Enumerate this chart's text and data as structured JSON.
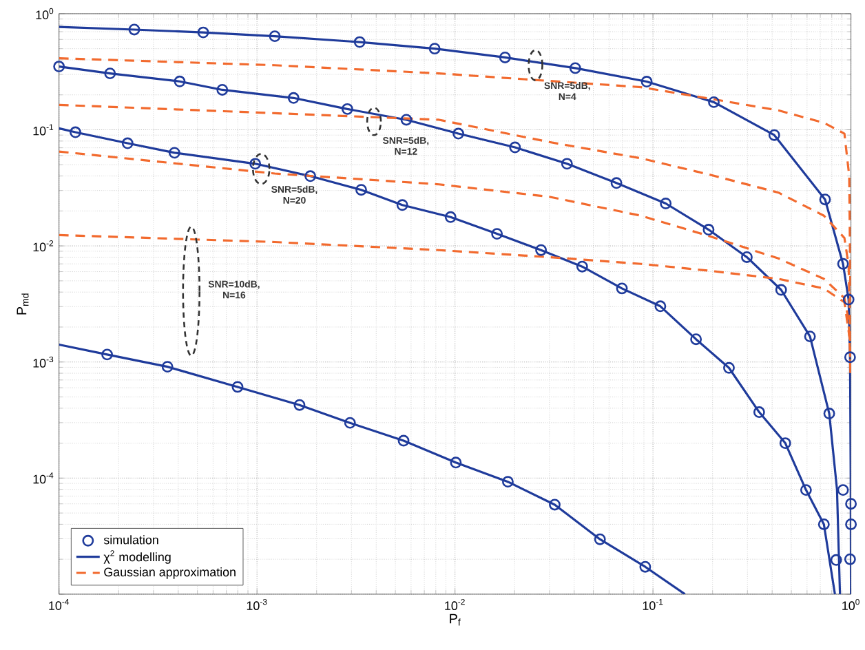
{
  "chart_data": {
    "type": "line",
    "xlabel": "P$_{f}$",
    "ylabel": "P$_{md}$",
    "log": "xy",
    "grid": true,
    "legend": "bottom left",
    "xlim": [
      0.0001,
      1
    ],
    "ylim": [
      1e-05,
      1
    ],
    "xticks": [
      {
        "value": 0.0001,
        "label": "10$^{-4}$"
      },
      {
        "value": 0.001,
        "label": "10$^{-3}$"
      },
      {
        "value": 0.01,
        "label": "10$^{-2}$"
      },
      {
        "value": 0.1,
        "label": "10$^{-1}$"
      },
      {
        "value": 1,
        "label": "10$^{0}$"
      }
    ],
    "yticks": [
      {
        "value": 1e-05,
        "label": null
      },
      {
        "value": 0.0001,
        "label": "10$^{-4}$"
      },
      {
        "value": 0.001,
        "label": "10$^{-3}$"
      },
      {
        "value": 0.01,
        "label": "10$^{-2}$"
      },
      {
        "value": 0.1,
        "label": "10$^{-1}$"
      },
      {
        "value": 1,
        "label": "10$^{0}$"
      }
    ],
    "annotations": [
      {
        "text": "SNR=5dB, N=4",
        "x": 0.0255,
        "y": 0.36
      },
      {
        "text": "SNR=5dB, N=12",
        "x": 0.0039,
        "y": 0.118
      },
      {
        "text": "SNR=5dB, N=20",
        "x": 0.00105,
        "y": 0.046
      },
      "SNR=10dB, N=16"
    ],
    "series": [
      {
        "name": "simulation",
        "type": "scatter",
        "marker": "circle",
        "color": "#1f3b9b",
        "x": [
          0.00024,
          0.000535,
          0.00123,
          0.0033,
          0.0079,
          0.0179,
          0.0405,
          0.093,
          0.203,
          0.41,
          0.74,
          0.912,
          0.973,
          0.99,
          1.0,
          1.0,
          0.99,
          0.0001,
          0.000181,
          0.000407,
          0.000668,
          0.00153,
          0.00286,
          0.00568,
          0.0104,
          0.0201,
          0.0368,
          0.0654,
          0.116,
          0.191,
          0.298,
          0.444,
          0.621,
          0.777,
          0.912,
          0.000121,
          0.000222,
          0.000383,
          0.00098,
          0.00186,
          0.00336,
          0.00542,
          0.0095,
          0.0163,
          0.0272,
          0.0439,
          0.0697,
          0.109,
          0.165,
          0.242,
          0.344,
          0.466,
          0.593,
          0.73,
          0.842,
          0.000175,
          0.000353,
          0.000798,
          0.00164,
          0.00295,
          0.0055,
          0.0101,
          0.0185,
          0.0319,
          0.054,
          0.0914
        ],
        "values": [
          0.73,
          0.69,
          0.64,
          0.57,
          0.5,
          0.42,
          0.34,
          0.26,
          0.173,
          0.09,
          0.0251,
          0.007,
          0.00345,
          0.0011,
          6e-05,
          4e-05,
          2e-05,
          0.351,
          0.306,
          0.261,
          0.221,
          0.188,
          0.151,
          0.122,
          0.0927,
          0.0706,
          0.051,
          0.0348,
          0.0232,
          0.0138,
          0.008,
          0.00418,
          0.00166,
          0.00036,
          7.9e-05,
          0.0953,
          0.0766,
          0.0634,
          0.051,
          0.0399,
          0.0304,
          0.0225,
          0.0177,
          0.0127,
          0.0092,
          0.00663,
          0.0043,
          0.00302,
          0.00157,
          0.00089,
          0.00037,
          0.0002,
          7.9e-05,
          4e-05,
          1.97e-05,
          0.00116,
          0.00091,
          0.00061,
          0.000426,
          0.000299,
          0.00021,
          0.000136,
          9.3e-05,
          5.9e-05,
          2.97e-05,
          1.72e-05
        ]
      },
      {
        "name": "χ$^{2}$ modelling",
        "line_style": "solid",
        "color": "#1f3b9b",
        "x": [
          0.0001,
          0.00024,
          0.000535,
          0.00123,
          0.0033,
          0.0079,
          0.0179,
          0.0405,
          0.093,
          0.203,
          0.41,
          0.74,
          0.912,
          0.973,
          0.99,
          0.997,
          1.0
        ],
        "values": [
          0.77,
          0.73,
          0.69,
          0.64,
          0.57,
          0.5,
          0.42,
          0.34,
          0.26,
          0.173,
          0.09,
          0.0251,
          0.007,
          0.00345,
          0.001,
          0.0001,
          1e-05
        ]
      },
      {
        "line_style": "solid",
        "color": "#1f3b9b",
        "x": [
          0.0001,
          0.000181,
          0.000407,
          0.000668,
          0.00153,
          0.00286,
          0.00568,
          0.0104,
          0.0201,
          0.0368,
          0.0654,
          0.116,
          0.191,
          0.298,
          0.444,
          0.621,
          0.777,
          0.85,
          0.88
        ],
        "values": [
          0.351,
          0.306,
          0.261,
          0.221,
          0.188,
          0.151,
          0.122,
          0.0927,
          0.0706,
          0.051,
          0.0348,
          0.0232,
          0.0138,
          0.008,
          0.00418,
          0.00166,
          0.00036,
          8e-05,
          1e-05
        ]
      },
      {
        "line_style": "solid",
        "color": "#1f3b9b",
        "x": [
          0.0001,
          0.000121,
          0.000222,
          0.000383,
          0.00098,
          0.00186,
          0.00336,
          0.00542,
          0.0095,
          0.0163,
          0.0272,
          0.0439,
          0.0697,
          0.109,
          0.165,
          0.242,
          0.344,
          0.466,
          0.593,
          0.73,
          0.83
        ],
        "values": [
          0.103,
          0.0953,
          0.0766,
          0.0634,
          0.051,
          0.0399,
          0.0304,
          0.0225,
          0.0177,
          0.0127,
          0.0092,
          0.00663,
          0.0043,
          0.00302,
          0.00157,
          0.00089,
          0.00037,
          0.0002,
          7.9e-05,
          4e-05,
          1e-05
        ]
      },
      {
        "line_style": "solid",
        "color": "#1f3b9b",
        "x": [
          0.0001,
          0.000175,
          0.000353,
          0.000798,
          0.00164,
          0.00295,
          0.0055,
          0.0101,
          0.0185,
          0.0319,
          0.054,
          0.0914,
          0.145
        ],
        "values": [
          0.00141,
          0.00116,
          0.00091,
          0.00061,
          0.000426,
          0.000299,
          0.00021,
          0.000136,
          9.3e-05,
          5.9e-05,
          2.97e-05,
          1.72e-05,
          1e-05
        ]
      },
      {
        "name": "Gaussian approximation",
        "line_style": "dashed",
        "color": "#f26a2e",
        "x": [
          0.0001,
          0.00123,
          0.0083,
          0.087,
          0.203,
          0.43,
          0.73,
          0.927,
          0.98,
          0.995
        ],
        "values": [
          0.413,
          0.36,
          0.306,
          0.233,
          0.183,
          0.147,
          0.115,
          0.0927,
          0.04,
          0.003
        ]
      },
      {
        "line_style": "dashed",
        "color": "#f26a2e",
        "x": [
          0.0001,
          0.00123,
          0.0083,
          0.0299,
          0.087,
          0.194,
          0.43,
          0.73,
          0.927,
          0.973,
          0.99,
          0.995
        ],
        "values": [
          0.164,
          0.139,
          0.122,
          0.0785,
          0.0568,
          0.041,
          0.0288,
          0.0182,
          0.0117,
          0.0068,
          0.002,
          0.0008
        ]
      },
      {
        "line_style": "dashed",
        "color": "#f26a2e",
        "x": [
          0.0001,
          0.00123,
          0.0083,
          0.0299,
          0.087,
          0.194,
          0.43,
          0.73,
          0.927,
          0.973,
          0.99,
          0.995
        ],
        "values": [
          0.065,
          0.042,
          0.0339,
          0.0265,
          0.0182,
          0.0121,
          0.0078,
          0.0052,
          0.00355,
          0.0023,
          0.0012,
          0.0008
        ]
      },
      {
        "line_style": "dashed",
        "color": "#f26a2e",
        "x": [
          0.0001,
          0.00123,
          0.0083,
          0.0299,
          0.087,
          0.194,
          0.43,
          0.73,
          0.927,
          0.99,
          0.995
        ],
        "values": [
          0.0124,
          0.0108,
          0.0092,
          0.008,
          0.007,
          0.0061,
          0.0052,
          0.0043,
          0.00327,
          0.0015,
          0.0008
        ]
      }
    ]
  }
}
